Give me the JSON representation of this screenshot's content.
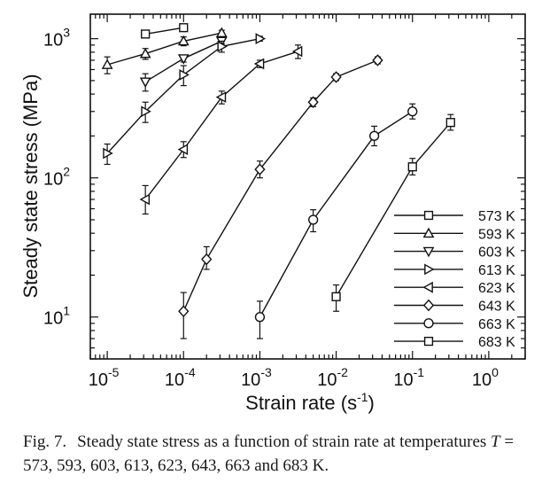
{
  "chart_data": {
    "type": "scatter",
    "xlabel": "Strain rate (s",
    "xlabel_sup": "-1",
    "xlabel_close": ")",
    "ylabel": "Steady state stress (MPa)",
    "x_scale": "log",
    "y_scale": "log",
    "xlim": [
      6e-06,
      3.0
    ],
    "ylim": [
      5,
      1500
    ],
    "x_ticks": [
      {
        "value": 1e-05,
        "base": "10",
        "exp": "-5"
      },
      {
        "value": 0.0001,
        "base": "10",
        "exp": "-4"
      },
      {
        "value": 0.001,
        "base": "10",
        "exp": "-3"
      },
      {
        "value": 0.01,
        "base": "10",
        "exp": "-2"
      },
      {
        "value": 0.1,
        "base": "10",
        "exp": "-1"
      },
      {
        "value": 1,
        "base": "10",
        "exp": "0"
      }
    ],
    "y_ticks": [
      {
        "value": 10,
        "base": "10",
        "exp": "1"
      },
      {
        "value": 100,
        "base": "10",
        "exp": "2"
      },
      {
        "value": 1000,
        "base": "10",
        "exp": "3"
      }
    ],
    "grid": false,
    "legend_position": "bottom-right",
    "series": [
      {
        "name": "573 K",
        "marker": "square",
        "points": [
          {
            "x": 3.16e-05,
            "y": 1080,
            "lo": 1030,
            "hi": 1130
          },
          {
            "x": 0.0001,
            "y": 1200,
            "lo": 1150,
            "hi": 1250
          }
        ]
      },
      {
        "name": "593 K",
        "marker": "triangle-up",
        "points": [
          {
            "x": 1e-05,
            "y": 650,
            "lo": 560,
            "hi": 740
          },
          {
            "x": 3.16e-05,
            "y": 780,
            "lo": 710,
            "hi": 850
          },
          {
            "x": 0.0001,
            "y": 960,
            "lo": 890,
            "hi": 1030
          },
          {
            "x": 0.000316,
            "y": 1100,
            "lo": 1050,
            "hi": 1150
          }
        ]
      },
      {
        "name": "603 K",
        "marker": "triangle-down",
        "points": [
          {
            "x": 3.16e-05,
            "y": 490,
            "lo": 420,
            "hi": 560
          },
          {
            "x": 0.0001,
            "y": 720,
            "lo": 680,
            "hi": 760
          },
          {
            "x": 0.000316,
            "y": 960,
            "lo": 920,
            "hi": 1000
          }
        ]
      },
      {
        "name": "613 K",
        "marker": "triangle-right",
        "points": [
          {
            "x": 1e-05,
            "y": 150,
            "lo": 125,
            "hi": 175
          },
          {
            "x": 3.16e-05,
            "y": 300,
            "lo": 250,
            "hi": 350
          },
          {
            "x": 0.0001,
            "y": 550,
            "lo": 460,
            "hi": 640
          },
          {
            "x": 0.000316,
            "y": 880,
            "lo": 800,
            "hi": 960
          },
          {
            "x": 0.001,
            "y": 1000,
            "lo": 960,
            "hi": 1040
          }
        ]
      },
      {
        "name": "623 K",
        "marker": "triangle-left",
        "points": [
          {
            "x": 3.16e-05,
            "y": 70,
            "lo": 55,
            "hi": 88
          },
          {
            "x": 0.0001,
            "y": 160,
            "lo": 140,
            "hi": 182
          },
          {
            "x": 0.000316,
            "y": 380,
            "lo": 340,
            "hi": 420
          },
          {
            "x": 0.001,
            "y": 660,
            "lo": 620,
            "hi": 700
          },
          {
            "x": 0.00316,
            "y": 810,
            "lo": 720,
            "hi": 900
          }
        ]
      },
      {
        "name": "643 K",
        "marker": "diamond",
        "points": [
          {
            "x": 0.0001,
            "y": 11,
            "lo": 7,
            "hi": 15
          },
          {
            "x": 0.0002,
            "y": 26,
            "lo": 22,
            "hi": 32
          },
          {
            "x": 0.001,
            "y": 115,
            "lo": 100,
            "hi": 132
          },
          {
            "x": 0.005,
            "y": 350,
            "lo": 325,
            "hi": 375
          },
          {
            "x": 0.01,
            "y": 530,
            "lo": 500,
            "hi": 560
          },
          {
            "x": 0.035,
            "y": 700,
            "lo": 660,
            "hi": 740
          }
        ]
      },
      {
        "name": "663 K",
        "marker": "circle",
        "points": [
          {
            "x": 0.001,
            "y": 10,
            "lo": 7,
            "hi": 13
          },
          {
            "x": 0.005,
            "y": 50,
            "lo": 41,
            "hi": 59
          },
          {
            "x": 0.0316,
            "y": 200,
            "lo": 170,
            "hi": 235
          },
          {
            "x": 0.1,
            "y": 300,
            "lo": 265,
            "hi": 340
          }
        ]
      },
      {
        "name": "683 K",
        "marker": "square",
        "points": [
          {
            "x": 0.01,
            "y": 14,
            "lo": 11,
            "hi": 17
          },
          {
            "x": 0.1,
            "y": 120,
            "lo": 105,
            "hi": 138
          },
          {
            "x": 0.316,
            "y": 250,
            "lo": 220,
            "hi": 285
          }
        ]
      }
    ]
  },
  "caption": {
    "label": "Fig. 7.",
    "text_before": "Steady state stress as a function of strain rate at temperatures ",
    "variable": "T",
    "text_after": " = 573, 593, 603, 613, 623, 643, 663 and 683 K."
  }
}
